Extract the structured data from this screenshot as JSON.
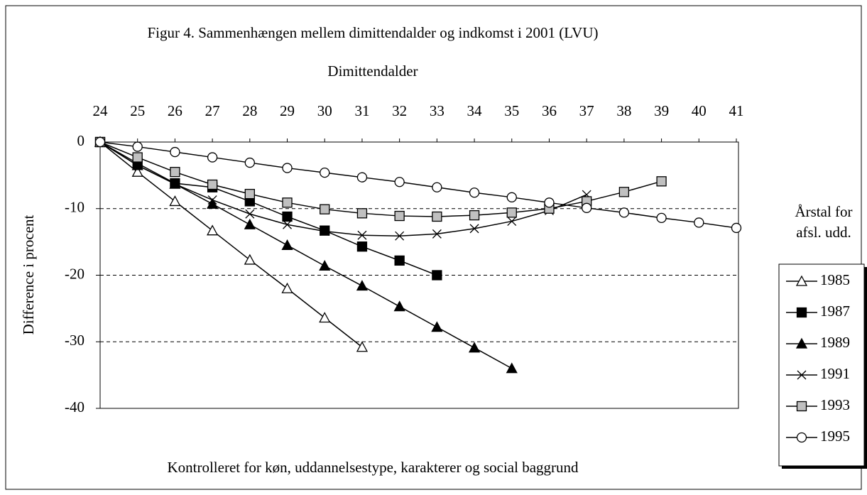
{
  "chart_data": {
    "type": "line",
    "title": "Figur 4. Sammenhængen mellem dimittendalder og indkomst i 2001 (LVU)",
    "x_label": "Dimittendalder",
    "y_label": "Difference i procent",
    "footnote": "Kontrolleret for køn, uddannelsestype, karakterer og social baggrund",
    "legend_title": [
      "Årstal for",
      "afsl. udd."
    ],
    "legend_position": "right",
    "grid": true,
    "x": [
      24,
      25,
      26,
      27,
      28,
      29,
      30,
      31,
      32,
      33,
      34,
      35,
      36,
      37,
      38,
      39,
      40,
      41
    ],
    "xlim": [
      24,
      41
    ],
    "xticks": [
      24,
      25,
      26,
      27,
      28,
      29,
      30,
      31,
      32,
      33,
      34,
      35,
      36,
      37,
      38,
      39,
      40,
      41
    ],
    "ylim": [
      0,
      -40
    ],
    "yticks": [
      0,
      -10,
      -20,
      -30,
      -40
    ],
    "series": [
      {
        "name": "1985",
        "color": "#000000",
        "marker": "triangle",
        "marker_fill": "#ffffff",
        "values": [
          0,
          -4.5,
          -8.9,
          -13.3,
          -17.7,
          -22,
          -26.4,
          -30.8,
          null,
          null,
          null,
          null,
          null,
          null,
          null,
          null,
          null,
          null
        ]
      },
      {
        "name": "1987",
        "color": "#000000",
        "marker": "square",
        "marker_fill": "#000000",
        "values": [
          0,
          -3.2,
          -6.2,
          -6.8,
          -8.9,
          -11.2,
          -13.3,
          -15.7,
          -17.8,
          -20,
          null,
          null,
          null,
          null,
          null,
          null,
          null,
          null
        ]
      },
      {
        "name": "1989",
        "color": "#000000",
        "marker": "triangle",
        "marker_fill": "#000000",
        "values": [
          0,
          -3.5,
          -6.3,
          -9.3,
          -12.4,
          -15.5,
          -18.6,
          -21.6,
          -24.7,
          -27.8,
          -30.9,
          -34,
          null,
          null,
          null,
          null,
          null,
          null
        ]
      },
      {
        "name": "1991",
        "color": "#000000",
        "marker": "cross",
        "marker_fill": "none",
        "values": [
          0,
          -3.5,
          -6.3,
          -8.7,
          -10.8,
          -12.4,
          -13.4,
          -14,
          -14.1,
          -13.8,
          -13,
          -11.9,
          -10.3,
          -7.9,
          null,
          null,
          null,
          null
        ]
      },
      {
        "name": "1993",
        "color": "#000000",
        "marker": "square",
        "marker_fill": "#c0c0c0",
        "values": [
          0,
          -2.3,
          -4.5,
          -6.4,
          -7.8,
          -9.1,
          -10.1,
          -10.7,
          -11.1,
          -11.2,
          -11,
          -10.6,
          -10,
          -8.9,
          -7.5,
          -5.9,
          null,
          null
        ]
      },
      {
        "name": "1995",
        "color": "#000000",
        "marker": "circle",
        "marker_fill": "#ffffff",
        "values": [
          0,
          -0.7,
          -1.5,
          -2.3,
          -3.1,
          -3.9,
          -4.6,
          -5.3,
          -6,
          -6.8,
          -7.6,
          -8.3,
          -9.1,
          -9.9,
          -10.6,
          -11.4,
          -12.1,
          -12.9
        ]
      }
    ]
  }
}
